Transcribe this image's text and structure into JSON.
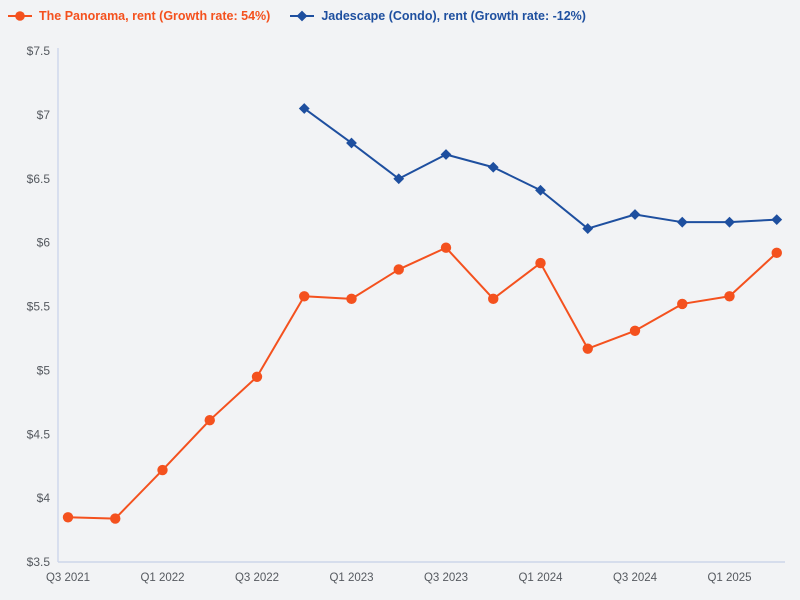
{
  "page": {
    "background": "#f2f3f5"
  },
  "legend": {
    "items": [
      {
        "label": "The Panorama, rent (Growth rate: 54%)",
        "color": "#f4511e",
        "marker": "circle"
      },
      {
        "label": "Jadescape (Condo), rent (Growth rate: -12%)",
        "color": "#1e4f9f",
        "marker": "diamond"
      }
    ]
  },
  "chart_data": {
    "type": "line",
    "title": "",
    "xlabel": "",
    "ylabel": "",
    "categories": [
      "Q3 2021",
      "Q4 2021",
      "Q1 2022",
      "Q2 2022",
      "Q3 2022",
      "Q4 2022",
      "Q1 2023",
      "Q2 2023",
      "Q3 2023",
      "Q4 2023",
      "Q1 2024",
      "Q2 2024",
      "Q3 2024",
      "Q4 2024",
      "Q1 2025",
      "Q2 2025"
    ],
    "x_tick_labels": [
      "Q3 2021",
      "Q1 2022",
      "Q3 2022",
      "Q1 2023",
      "Q3 2023",
      "Q1 2024",
      "Q3 2024",
      "Q1 2025"
    ],
    "x_tick_every": 2,
    "series": [
      {
        "name": "The Panorama, rent (Growth rate: 54%)",
        "color": "#f4511e",
        "marker": "circle",
        "values": [
          3.85,
          3.84,
          4.22,
          4.61,
          4.95,
          5.58,
          5.56,
          5.79,
          5.96,
          5.56,
          5.84,
          5.17,
          5.31,
          5.52,
          5.58,
          5.92
        ]
      },
      {
        "name": "Jadescape (Condo), rent (Growth rate: -12%)",
        "color": "#1e4f9f",
        "marker": "diamond",
        "values": [
          null,
          null,
          null,
          null,
          null,
          7.05,
          6.78,
          6.5,
          6.69,
          6.59,
          6.41,
          6.11,
          6.22,
          6.16,
          6.16,
          6.18
        ]
      }
    ],
    "ylim": [
      3.5,
      7.5
    ],
    "y_ticks": [
      3.5,
      4,
      4.5,
      5,
      5.5,
      6,
      6.5,
      7,
      7.5
    ],
    "y_tick_prefix": "$",
    "grid": false,
    "legend_position": "top-left",
    "axis_color": "#cdd6ea",
    "tick_label_color": "#55595f"
  }
}
